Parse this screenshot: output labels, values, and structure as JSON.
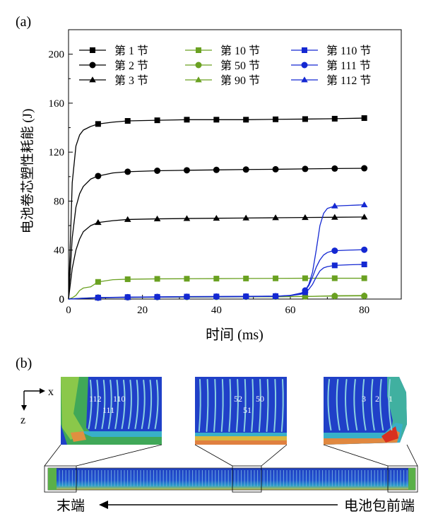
{
  "panel_a_label": "(a)",
  "panel_b_label": "(b)",
  "chart_data": {
    "type": "line",
    "xlabel": "时间 (ms)",
    "ylabel": "电池卷芯塑性耗能 (J)",
    "xlim": [
      0,
      90
    ],
    "ylim": [
      0,
      220
    ],
    "xticks": [
      0,
      20,
      40,
      60,
      80
    ],
    "yticks": [
      0,
      40,
      80,
      120,
      160,
      200
    ],
    "grid": false,
    "legend_position": "top",
    "series": [
      {
        "name": "第 1 节",
        "color": "#000000",
        "marker": "square",
        "x": [
          0,
          1,
          2,
          3,
          4,
          6,
          8,
          12,
          16,
          24,
          32,
          40,
          48,
          56,
          64,
          72,
          80
        ],
        "y": [
          0,
          95,
          125,
          134,
          138,
          141,
          143,
          144.5,
          145.5,
          146,
          146.5,
          146.5,
          146.5,
          146.8,
          147,
          147.3,
          147.8
        ]
      },
      {
        "name": "第 2 节",
        "color": "#000000",
        "marker": "circle",
        "x": [
          0,
          1,
          2,
          3,
          4,
          6,
          8,
          12,
          16,
          24,
          32,
          40,
          48,
          56,
          64,
          72,
          80
        ],
        "y": [
          0,
          50,
          75,
          86,
          92,
          98,
          100.5,
          103,
          104,
          104.8,
          105.2,
          105.5,
          105.8,
          106,
          106.3,
          106.6,
          106.8
        ]
      },
      {
        "name": "第 3 节",
        "color": "#000000",
        "marker": "triangle",
        "x": [
          0,
          1,
          2,
          3,
          4,
          6,
          8,
          12,
          16,
          24,
          32,
          40,
          48,
          56,
          64,
          72,
          80
        ],
        "y": [
          0,
          25,
          40,
          49,
          55,
          60,
          62.5,
          64,
          65,
          65.5,
          65.8,
          66,
          66.2,
          66.4,
          66.6,
          66.8,
          67
        ]
      },
      {
        "name": "第 10 节",
        "color": "#6aa121",
        "marker": "square",
        "x": [
          0,
          1,
          2,
          3,
          4,
          6,
          8,
          12,
          16,
          24,
          32,
          40,
          48,
          56,
          64,
          72,
          80
        ],
        "y": [
          0,
          1,
          3,
          7,
          9,
          10,
          14,
          15.8,
          16.2,
          16.5,
          16.6,
          16.7,
          16.8,
          16.9,
          17,
          17,
          17
        ]
      },
      {
        "name": "第 50 节",
        "color": "#6aa121",
        "marker": "circle",
        "x": [
          0,
          4,
          8,
          16,
          24,
          32,
          40,
          48,
          56,
          64,
          68,
          72,
          80
        ],
        "y": [
          0,
          0.8,
          1.2,
          1.5,
          1.6,
          1.7,
          1.8,
          1.9,
          2,
          2.1,
          2.3,
          2.5,
          2.6
        ]
      },
      {
        "name": "第 90 节",
        "color": "#6aa121",
        "marker": "triangle",
        "x": [
          0,
          4,
          8,
          16,
          24,
          32,
          40,
          48,
          56,
          64,
          68,
          72,
          80
        ],
        "y": [
          0,
          0.7,
          1,
          1.3,
          1.5,
          1.6,
          1.7,
          1.8,
          1.9,
          2.1,
          2.4,
          2.7,
          2.9
        ]
      },
      {
        "name": "第 110 节",
        "color": "#1428d2",
        "marker": "square",
        "x": [
          0,
          4,
          8,
          16,
          24,
          32,
          40,
          48,
          56,
          60,
          63,
          64,
          65,
          66,
          67,
          68,
          69,
          70,
          71,
          72,
          76,
          80
        ],
        "y": [
          0,
          0.6,
          1.2,
          1.6,
          1.8,
          2,
          2.1,
          2.2,
          2.4,
          2.8,
          4,
          5.5,
          8,
          12,
          18,
          23,
          25.5,
          26.5,
          27,
          27.5,
          28,
          28.3
        ]
      },
      {
        "name": "第 111 节",
        "color": "#1428d2",
        "marker": "circle",
        "x": [
          0,
          4,
          8,
          16,
          24,
          32,
          40,
          48,
          56,
          60,
          63,
          64,
          65,
          66,
          67,
          68,
          69,
          70,
          71,
          72,
          76,
          80
        ],
        "y": [
          0,
          0.6,
          1.1,
          1.5,
          1.7,
          1.9,
          2,
          2.1,
          2.3,
          3,
          5,
          7,
          11,
          18,
          26,
          32,
          36,
          38,
          39,
          39.5,
          40,
          40.3
        ]
      },
      {
        "name": "第 112 节",
        "color": "#1428d2",
        "marker": "triangle",
        "x": [
          0,
          4,
          8,
          16,
          24,
          32,
          40,
          48,
          56,
          60,
          63,
          64,
          65,
          66,
          67,
          68,
          69,
          70,
          71,
          72,
          76,
          80
        ],
        "y": [
          0,
          0.5,
          1,
          1.4,
          1.6,
          1.8,
          1.9,
          2,
          2.2,
          2.8,
          4.5,
          7,
          12,
          22,
          40,
          60,
          70,
          74,
          75,
          76,
          76.5,
          77
        ]
      }
    ]
  },
  "panel_b": {
    "axis_x": "x",
    "axis_z": "z",
    "inset_left_numbers": [
      "112",
      "110",
      "111"
    ],
    "inset_mid_numbers": [
      "52",
      "50",
      "51"
    ],
    "inset_right_numbers": [
      "3",
      "2",
      "1"
    ],
    "arrow_left_label": "末端",
    "arrow_right_label": "电池包前端"
  }
}
